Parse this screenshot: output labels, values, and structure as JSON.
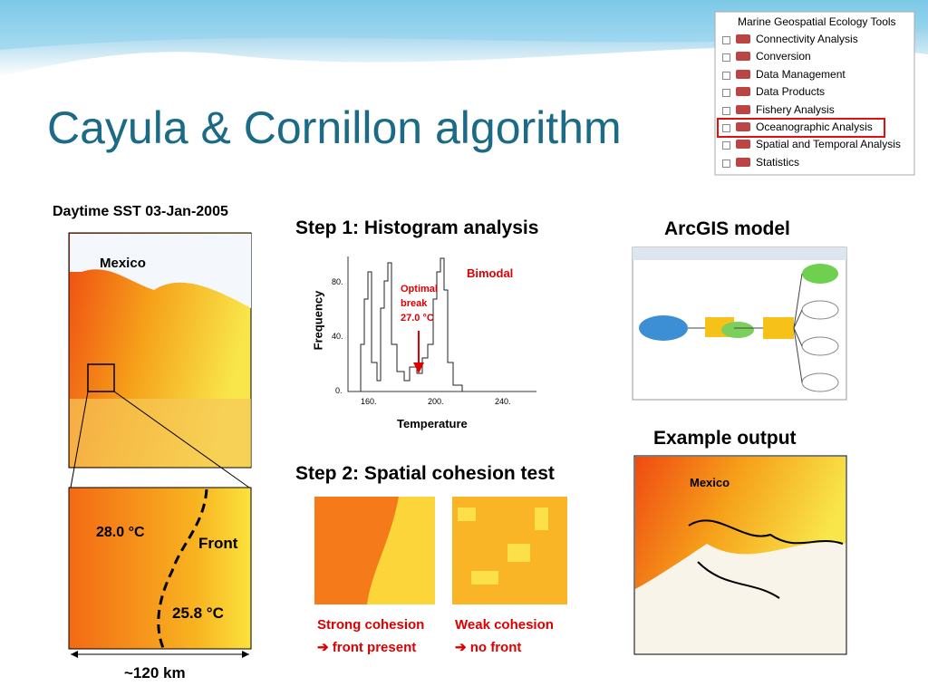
{
  "title": "Cayula & Cornillon algorithm",
  "toolbox": {
    "root": "Marine Geospatial Ecology Tools",
    "items": [
      "Connectivity Analysis",
      "Conversion",
      "Data Management",
      "Data Products",
      "Fishery Analysis",
      "Oceanographic Analysis",
      "Spatial and Temporal Analysis",
      "Statistics"
    ]
  },
  "sst_panel": {
    "title": "Daytime SST 03-Jan-2005",
    "map_label": "Mexico",
    "warm_label": "28.0 °C",
    "front_label": "Front",
    "cool_label": "25.8 °C",
    "scale_label": "~120 km"
  },
  "step1": {
    "title": "Step 1: Histogram analysis",
    "y_label": "Frequency",
    "x_label": "Temperature",
    "y_tick_labels": [
      "80.",
      "40.",
      "0."
    ],
    "x_tick_labels": [
      "160.",
      "200.",
      "240."
    ],
    "bimodal_label": "Bimodal",
    "break_label": [
      "Optimal",
      "break",
      "27.0 °C"
    ]
  },
  "arcgis": {
    "title": "ArcGIS model"
  },
  "example": {
    "title": "Example output",
    "map_label": "Mexico"
  },
  "step2": {
    "title": "Step 2: Spatial cohesion test",
    "strong": [
      "Strong cohesion",
      "➔ front present"
    ],
    "weak": [
      "Weak cohesion",
      "➔ no front"
    ]
  }
}
